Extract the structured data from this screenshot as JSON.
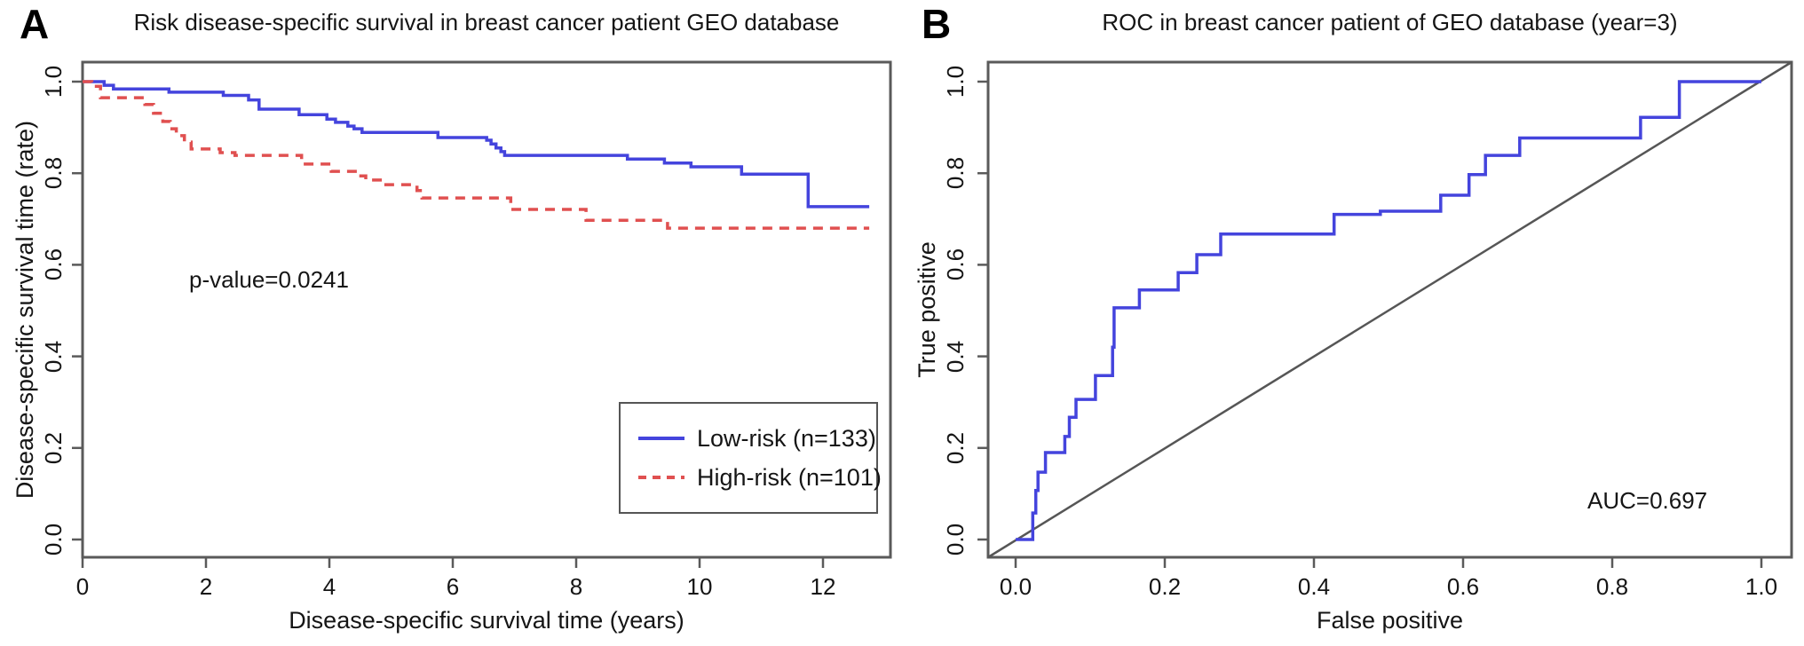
{
  "figure": {
    "background": "#ffffff",
    "frame_color": "#5a5a5a",
    "text_color": "#151515"
  },
  "chart_data": [
    {
      "type": "line",
      "subtype": "kaplan-meier-step",
      "panel_label": "A",
      "title": "Risk disease-specific survival in breast cancer patient GEO database",
      "xlabel": "Disease-specific survival time (years)",
      "ylabel": "Disease-specific survival time (rate)",
      "annotation": "p-value=0.0241",
      "xlim": [
        0,
        13.1
      ],
      "ylim": [
        -0.04,
        1.04
      ],
      "grid": false,
      "legend_position": "bottom-right-box",
      "xticks": {
        "values": [
          0,
          2,
          4,
          6,
          8,
          10,
          12
        ],
        "labels": [
          "0",
          "2",
          "4",
          "6",
          "8",
          "10",
          "12"
        ]
      },
      "yticks": {
        "values": [
          0,
          0.2,
          0.4,
          0.6,
          0.8,
          1.0
        ],
        "labels": [
          "0.0",
          "0.2",
          "0.4",
          "0.6",
          "0.8",
          "1.0"
        ]
      },
      "series": [
        {
          "id": "low-risk",
          "name": "Low-risk (n=133)",
          "color": "#4444dd",
          "line_style": "solid",
          "points": [
            [
              0,
              1
            ],
            [
              0.35,
              1
            ],
            [
              0.35,
              0.992
            ],
            [
              0.5,
              0.992
            ],
            [
              0.5,
              0.984
            ],
            [
              1.4,
              0.984
            ],
            [
              1.4,
              0.977
            ],
            [
              2.28,
              0.977
            ],
            [
              2.28,
              0.97
            ],
            [
              2.69,
              0.97
            ],
            [
              2.69,
              0.96
            ],
            [
              2.86,
              0.96
            ],
            [
              2.86,
              0.94
            ],
            [
              3.51,
              0.94
            ],
            [
              3.51,
              0.928
            ],
            [
              3.96,
              0.928
            ],
            [
              3.96,
              0.918
            ],
            [
              4.1,
              0.918
            ],
            [
              4.1,
              0.911
            ],
            [
              4.3,
              0.911
            ],
            [
              4.3,
              0.903
            ],
            [
              4.4,
              0.903
            ],
            [
              4.4,
              0.897
            ],
            [
              4.53,
              0.897
            ],
            [
              4.53,
              0.889
            ],
            [
              5.76,
              0.889
            ],
            [
              5.76,
              0.878
            ],
            [
              6.55,
              0.878
            ],
            [
              6.55,
              0.872
            ],
            [
              6.62,
              0.872
            ],
            [
              6.62,
              0.864
            ],
            [
              6.7,
              0.864
            ],
            [
              6.7,
              0.855
            ],
            [
              6.78,
              0.855
            ],
            [
              6.78,
              0.847
            ],
            [
              6.84,
              0.847
            ],
            [
              6.84,
              0.839
            ],
            [
              8.83,
              0.839
            ],
            [
              8.83,
              0.831
            ],
            [
              9.43,
              0.831
            ],
            [
              9.43,
              0.822
            ],
            [
              9.86,
              0.822
            ],
            [
              9.86,
              0.814
            ],
            [
              10.68,
              0.814
            ],
            [
              10.68,
              0.798
            ],
            [
              11.76,
              0.798
            ],
            [
              11.76,
              0.727
            ],
            [
              12.75,
              0.727
            ]
          ]
        },
        {
          "id": "high-risk",
          "name": "High-risk (n=101)",
          "color": "#e05050",
          "line_style": "dashed",
          "points": [
            [
              0,
              1
            ],
            [
              0.15,
              1
            ],
            [
              0.15,
              0.99
            ],
            [
              0.29,
              0.99
            ],
            [
              0.29,
              0.965
            ],
            [
              1.01,
              0.965
            ],
            [
              1.01,
              0.95
            ],
            [
              1.15,
              0.95
            ],
            [
              1.15,
              0.931
            ],
            [
              1.3,
              0.931
            ],
            [
              1.3,
              0.913
            ],
            [
              1.42,
              0.913
            ],
            [
              1.42,
              0.897
            ],
            [
              1.52,
              0.897
            ],
            [
              1.52,
              0.882
            ],
            [
              1.65,
              0.882
            ],
            [
              1.65,
              0.868
            ],
            [
              1.76,
              0.868
            ],
            [
              1.76,
              0.853
            ],
            [
              2.23,
              0.853
            ],
            [
              2.23,
              0.845
            ],
            [
              2.47,
              0.845
            ],
            [
              2.47,
              0.839
            ],
            [
              3.55,
              0.839
            ],
            [
              3.55,
              0.82
            ],
            [
              4.03,
              0.82
            ],
            [
              4.03,
              0.804
            ],
            [
              4.46,
              0.804
            ],
            [
              4.46,
              0.794
            ],
            [
              4.59,
              0.794
            ],
            [
              4.59,
              0.785
            ],
            [
              4.89,
              0.785
            ],
            [
              4.89,
              0.775
            ],
            [
              5.42,
              0.775
            ],
            [
              5.42,
              0.762
            ],
            [
              5.5,
              0.762
            ],
            [
              5.5,
              0.746
            ],
            [
              6.94,
              0.746
            ],
            [
              6.94,
              0.721
            ],
            [
              8.16,
              0.721
            ],
            [
              8.16,
              0.697
            ],
            [
              9.48,
              0.697
            ],
            [
              9.48,
              0.68
            ],
            [
              12.75,
              0.68
            ]
          ]
        }
      ]
    },
    {
      "type": "line",
      "subtype": "roc-step",
      "panel_label": "B",
      "title": "ROC in breast cancer patient of GEO database (year=3)",
      "xlabel": "False positive",
      "ylabel": "True positive",
      "annotation": "AUC=0.697",
      "auc": 0.697,
      "xlim": [
        -0.04,
        1.04
      ],
      "ylim": [
        -0.04,
        1.04
      ],
      "grid": false,
      "reference_line": {
        "type": "diagonal",
        "color": "#565656"
      },
      "xticks": {
        "values": [
          0,
          0.2,
          0.4,
          0.6,
          0.8,
          1.0
        ],
        "labels": [
          "0.0",
          "0.2",
          "0.4",
          "0.6",
          "0.8",
          "1.0"
        ]
      },
      "yticks": {
        "values": [
          0,
          0.2,
          0.4,
          0.6,
          0.8,
          1.0
        ],
        "labels": [
          "0.0",
          "0.2",
          "0.4",
          "0.6",
          "0.8",
          "1.0"
        ]
      },
      "series": [
        {
          "id": "roc",
          "name": "ROC curve",
          "color": "#4444dd",
          "line_style": "solid",
          "points": [
            [
              0,
              0
            ],
            [
              0.023,
              0
            ],
            [
              0.023,
              0.058
            ],
            [
              0.027,
              0.058
            ],
            [
              0.027,
              0.107
            ],
            [
              0.03,
              0.107
            ],
            [
              0.03,
              0.147
            ],
            [
              0.04,
              0.147
            ],
            [
              0.04,
              0.19
            ],
            [
              0.066,
              0.19
            ],
            [
              0.066,
              0.225
            ],
            [
              0.072,
              0.225
            ],
            [
              0.072,
              0.267
            ],
            [
              0.081,
              0.267
            ],
            [
              0.081,
              0.306
            ],
            [
              0.107,
              0.306
            ],
            [
              0.107,
              0.358
            ],
            [
              0.13,
              0.358
            ],
            [
              0.13,
              0.42
            ],
            [
              0.132,
              0.42
            ],
            [
              0.132,
              0.506
            ],
            [
              0.166,
              0.506
            ],
            [
              0.166,
              0.545
            ],
            [
              0.218,
              0.545
            ],
            [
              0.218,
              0.583
            ],
            [
              0.243,
              0.583
            ],
            [
              0.243,
              0.622
            ],
            [
              0.275,
              0.622
            ],
            [
              0.275,
              0.667
            ],
            [
              0.427,
              0.667
            ],
            [
              0.427,
              0.71
            ],
            [
              0.489,
              0.71
            ],
            [
              0.489,
              0.717
            ],
            [
              0.57,
              0.717
            ],
            [
              0.57,
              0.752
            ],
            [
              0.608,
              0.752
            ],
            [
              0.608,
              0.797
            ],
            [
              0.63,
              0.797
            ],
            [
              0.63,
              0.839
            ],
            [
              0.676,
              0.839
            ],
            [
              0.676,
              0.877
            ],
            [
              0.838,
              0.877
            ],
            [
              0.838,
              0.922
            ],
            [
              0.89,
              0.922
            ],
            [
              0.89,
              1
            ],
            [
              1,
              1
            ]
          ]
        }
      ]
    }
  ]
}
